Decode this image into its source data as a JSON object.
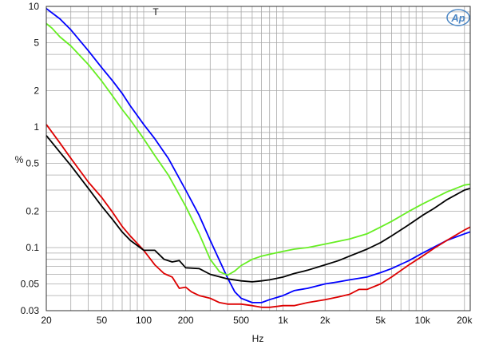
{
  "chart_data": {
    "type": "line",
    "title": "",
    "xlabel": "Hz",
    "ylabel": "%",
    "x_scale": "log",
    "y_scale": "log",
    "xlim": [
      20,
      22000
    ],
    "ylim": [
      0.03,
      10
    ],
    "grid": true,
    "marker_label": "T",
    "marker_x": 122,
    "logo_text": "AP",
    "x_ticks": [
      {
        "v": 20,
        "label": "20"
      },
      {
        "v": 50,
        "label": "50"
      },
      {
        "v": 100,
        "label": "100"
      },
      {
        "v": 200,
        "label": "200"
      },
      {
        "v": 500,
        "label": "500"
      },
      {
        "v": 1000,
        "label": "1k"
      },
      {
        "v": 2000,
        "label": "2k"
      },
      {
        "v": 5000,
        "label": "5k"
      },
      {
        "v": 10000,
        "label": "10k"
      },
      {
        "v": 20000,
        "label": "20k"
      }
    ],
    "y_ticks": [
      {
        "v": 10,
        "label": "10"
      },
      {
        "v": 5,
        "label": "5"
      },
      {
        "v": 2,
        "label": "2"
      },
      {
        "v": 1,
        "label": "1"
      },
      {
        "v": 0.5,
        "label": "0.5"
      },
      {
        "v": 0.2,
        "label": "0.2"
      },
      {
        "v": 0.1,
        "label": "0.1"
      },
      {
        "v": 0.05,
        "label": "0.05"
      },
      {
        "v": 0.03,
        "label": "0.03"
      }
    ],
    "series": [
      {
        "color": "#0000ff",
        "points": [
          [
            20,
            9.6
          ],
          [
            25,
            7.9
          ],
          [
            30,
            6.4
          ],
          [
            40,
            4.3
          ],
          [
            50,
            3.1
          ],
          [
            60,
            2.4
          ],
          [
            70,
            1.9
          ],
          [
            80,
            1.5
          ],
          [
            100,
            1.05
          ],
          [
            120,
            0.8
          ],
          [
            150,
            0.55
          ],
          [
            200,
            0.3
          ],
          [
            250,
            0.185
          ],
          [
            300,
            0.115
          ],
          [
            350,
            0.078
          ],
          [
            400,
            0.056
          ],
          [
            450,
            0.043
          ],
          [
            500,
            0.038
          ],
          [
            600,
            0.035
          ],
          [
            700,
            0.035
          ],
          [
            800,
            0.037
          ],
          [
            1000,
            0.04
          ],
          [
            1200,
            0.044
          ],
          [
            1500,
            0.046
          ],
          [
            2000,
            0.05
          ],
          [
            2500,
            0.052
          ],
          [
            3000,
            0.054
          ],
          [
            4000,
            0.057
          ],
          [
            5000,
            0.062
          ],
          [
            6000,
            0.067
          ],
          [
            8000,
            0.078
          ],
          [
            10000,
            0.09
          ],
          [
            15000,
            0.115
          ],
          [
            20000,
            0.13
          ],
          [
            22000,
            0.135
          ]
        ]
      },
      {
        "color": "#66ee22",
        "points": [
          [
            20,
            7.2
          ],
          [
            22,
            6.6
          ],
          [
            25,
            5.6
          ],
          [
            30,
            4.7
          ],
          [
            40,
            3.3
          ],
          [
            50,
            2.4
          ],
          [
            60,
            1.8
          ],
          [
            70,
            1.4
          ],
          [
            80,
            1.15
          ],
          [
            100,
            0.8
          ],
          [
            120,
            0.58
          ],
          [
            150,
            0.4
          ],
          [
            200,
            0.22
          ],
          [
            250,
            0.13
          ],
          [
            300,
            0.08
          ],
          [
            350,
            0.063
          ],
          [
            400,
            0.059
          ],
          [
            450,
            0.064
          ],
          [
            500,
            0.071
          ],
          [
            600,
            0.08
          ],
          [
            700,
            0.085
          ],
          [
            800,
            0.088
          ],
          [
            1000,
            0.093
          ],
          [
            1200,
            0.097
          ],
          [
            1500,
            0.1
          ],
          [
            2000,
            0.107
          ],
          [
            3000,
            0.118
          ],
          [
            4000,
            0.13
          ],
          [
            5000,
            0.148
          ],
          [
            6000,
            0.165
          ],
          [
            8000,
            0.2
          ],
          [
            10000,
            0.23
          ],
          [
            15000,
            0.29
          ],
          [
            20000,
            0.33
          ],
          [
            22000,
            0.335
          ]
        ]
      },
      {
        "color": "#dd0000",
        "points": [
          [
            20,
            1.05
          ],
          [
            25,
            0.74
          ],
          [
            30,
            0.55
          ],
          [
            40,
            0.35
          ],
          [
            50,
            0.26
          ],
          [
            60,
            0.195
          ],
          [
            70,
            0.15
          ],
          [
            80,
            0.125
          ],
          [
            100,
            0.095
          ],
          [
            120,
            0.072
          ],
          [
            140,
            0.061
          ],
          [
            160,
            0.057
          ],
          [
            180,
            0.046
          ],
          [
            200,
            0.047
          ],
          [
            220,
            0.043
          ],
          [
            250,
            0.04
          ],
          [
            300,
            0.038
          ],
          [
            350,
            0.035
          ],
          [
            400,
            0.034
          ],
          [
            450,
            0.034
          ],
          [
            500,
            0.034
          ],
          [
            600,
            0.033
          ],
          [
            700,
            0.032
          ],
          [
            800,
            0.032
          ],
          [
            1000,
            0.033
          ],
          [
            1200,
            0.033
          ],
          [
            1500,
            0.035
          ],
          [
            2000,
            0.037
          ],
          [
            2500,
            0.039
          ],
          [
            3000,
            0.041
          ],
          [
            3500,
            0.045
          ],
          [
            4000,
            0.045
          ],
          [
            5000,
            0.05
          ],
          [
            6000,
            0.057
          ],
          [
            8000,
            0.072
          ],
          [
            10000,
            0.085
          ],
          [
            12000,
            0.098
          ],
          [
            15000,
            0.115
          ],
          [
            20000,
            0.14
          ],
          [
            22000,
            0.148
          ]
        ]
      },
      {
        "color": "#000000",
        "points": [
          [
            20,
            0.85
          ],
          [
            25,
            0.62
          ],
          [
            30,
            0.48
          ],
          [
            40,
            0.31
          ],
          [
            50,
            0.22
          ],
          [
            60,
            0.17
          ],
          [
            70,
            0.135
          ],
          [
            80,
            0.115
          ],
          [
            100,
            0.095
          ],
          [
            110,
            0.095
          ],
          [
            120,
            0.095
          ],
          [
            140,
            0.08
          ],
          [
            160,
            0.076
          ],
          [
            180,
            0.078
          ],
          [
            200,
            0.068
          ],
          [
            250,
            0.067
          ],
          [
            300,
            0.06
          ],
          [
            400,
            0.055
          ],
          [
            500,
            0.053
          ],
          [
            600,
            0.052
          ],
          [
            700,
            0.053
          ],
          [
            800,
            0.054
          ],
          [
            1000,
            0.057
          ],
          [
            1200,
            0.061
          ],
          [
            1500,
            0.065
          ],
          [
            2000,
            0.072
          ],
          [
            2500,
            0.078
          ],
          [
            3000,
            0.085
          ],
          [
            4000,
            0.097
          ],
          [
            5000,
            0.11
          ],
          [
            6000,
            0.125
          ],
          [
            8000,
            0.155
          ],
          [
            10000,
            0.185
          ],
          [
            12000,
            0.21
          ],
          [
            15000,
            0.25
          ],
          [
            20000,
            0.3
          ],
          [
            22000,
            0.31
          ]
        ]
      }
    ]
  }
}
